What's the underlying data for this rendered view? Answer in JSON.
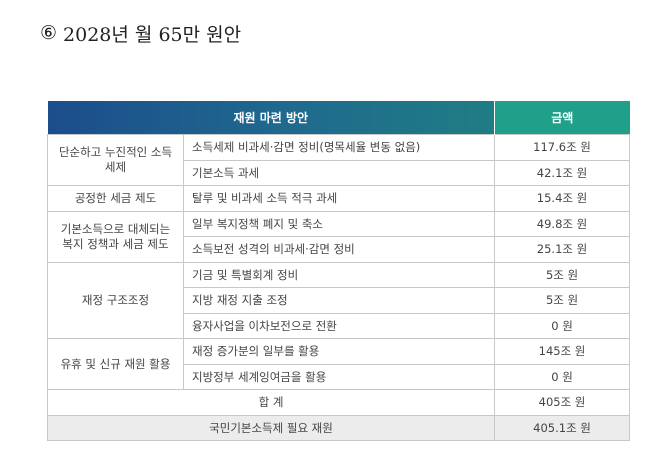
{
  "title": {
    "number": "⑥",
    "text": "2028년 월 65만 원안"
  },
  "table": {
    "headers": {
      "source": "재원 마련 방안",
      "amount": "금액"
    },
    "groups": [
      {
        "category": "단순하고 누진적인 소득세제",
        "items": [
          {
            "item": "소득세제 비과세·감면 정비(명목세율 변동 없음)",
            "amount": "117.6조 원"
          },
          {
            "item": "기본소득 과세",
            "amount": "42.1조 원"
          }
        ]
      },
      {
        "category": "공정한 세금 제도",
        "items": [
          {
            "item": "탈루 및 비과세 소득 적극 과세",
            "amount": "15.4조 원"
          }
        ]
      },
      {
        "category": "기본소득으로 대체되는 복지 정책과 세금 제도",
        "items": [
          {
            "item": "일부 복지정책 폐지 및 축소",
            "amount": "49.8조 원"
          },
          {
            "item": "소득보전 성격의 비과세·감면 정비",
            "amount": "25.1조 원"
          }
        ]
      },
      {
        "category": "재정 구조조정",
        "items": [
          {
            "item": "기금 및 특별회계 정비",
            "amount": "5조 원"
          },
          {
            "item": "지방 재정 지출 조정",
            "amount": "5조 원"
          },
          {
            "item": "융자사업을 이차보전으로 전환",
            "amount": "0 원"
          }
        ]
      },
      {
        "category": "유휴 및 신규 재원 활용",
        "items": [
          {
            "item": "재정 증가분의 일부를 활용",
            "amount": "145조 원"
          },
          {
            "item": "지방정부 세계잉여금을 활용",
            "amount": "0 원"
          }
        ]
      }
    ],
    "total": {
      "label": "합 계",
      "amount": "405조 원"
    },
    "required": {
      "label": "국민기본소득제 필요 재원",
      "amount": "405.1조 원"
    }
  }
}
